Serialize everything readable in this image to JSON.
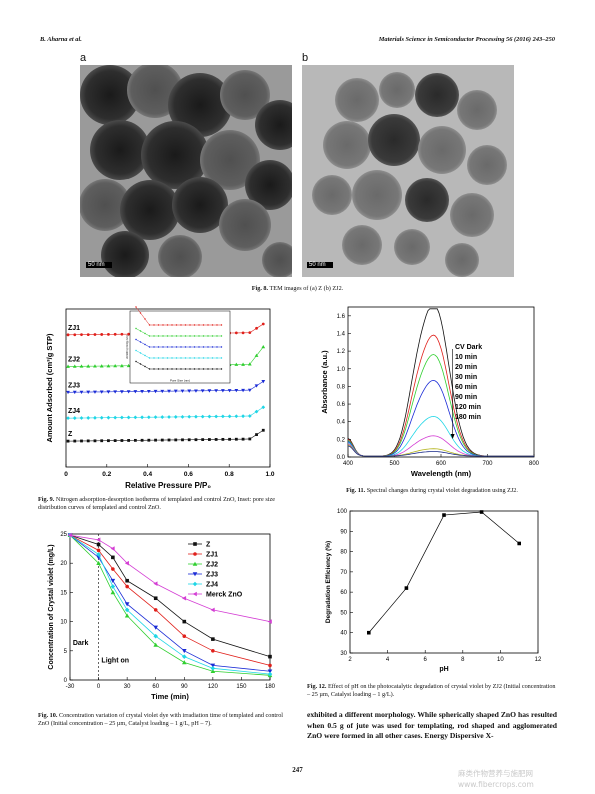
{
  "header": {
    "authors": "B. Aharna et al.",
    "journal": "Materials Science in Semiconductor Processing 56 (2016) 243–250"
  },
  "fig8": {
    "label_a": "a",
    "label_b": "b",
    "scale_a": "50 nm",
    "scale_b": "50 nm",
    "caption_bold": "Fig. 8.",
    "caption": " TEM images of (a) Z (b) ZJ2."
  },
  "fig9": {
    "caption_bold": "Fig. 9.",
    "caption": " Nitrogen adsorption-desorption isotherms of templated and control ZnO, Inset: pore size distribution curves of templated and control ZnO.",
    "inset_xlabel": "Pore Size (nm)",
    "inset_ylabel": "dV/dD (cm³/g nm)"
  },
  "fig10": {
    "caption_bold": "Fig. 10.",
    "caption": " Concentration variation of crystal violet dye with irradiation time of templated and control ZnO (Initial concentration – 25 µm, Catalyst loading – 1 g/L, pH – 7).",
    "dark": "Dark",
    "light": "Light on"
  },
  "fig11": {
    "caption_bold": "Fig. 11.",
    "caption": " Spectral changes during crystal violet degradation using ZJ2."
  },
  "fig12": {
    "caption_bold": "Fig. 12.",
    "caption": " Effect of pH on the photocatalytic degradation of crystal violet by ZJ2 (Initial concentration – 25 µm, Catalyst loading – 1 g/L)."
  },
  "body_text": "exhibited a different morphology. While spherically shaped ZnO has resulted when 0.5 g of jute was used for templating, rod shaped and agglomerated ZnO were formed in all other cases. Energy Dispersive X-",
  "page_number": "247",
  "watermark": "麻类作物营养与施肥网 www.fibercrops.com",
  "chart_data": [
    {
      "id": "fig9",
      "type": "scatter",
      "xlabel": "Relative Pressure P/P₀",
      "ylabel": "Amount Adsorbed (cm³/g STP)",
      "xlim": [
        0,
        1.0
      ],
      "xticks": [
        "0",
        "0.2",
        "0.4",
        "0.6",
        "0.8",
        "1.0"
      ],
      "series": [
        {
          "name": "ZJ1",
          "color": "#e0201b",
          "offset": 4.6
        },
        {
          "name": "ZJ2",
          "color": "#2fcf2f",
          "offset": 3.5
        },
        {
          "name": "ZJ3",
          "color": "#1a2bd6",
          "offset": 2.6
        },
        {
          "name": "ZJ4",
          "color": "#1fd6e6",
          "offset": 1.7
        },
        {
          "name": "Z",
          "color": "#111111",
          "offset": 0.9
        }
      ]
    },
    {
      "id": "fig10",
      "type": "line",
      "xlabel": "Time (min)",
      "ylabel": "Concentration of Crystal violet (mg/L)",
      "xlim": [
        -30,
        180
      ],
      "ylim": [
        0,
        25
      ],
      "xticks": [
        -30,
        0,
        30,
        60,
        90,
        120,
        150,
        180
      ],
      "yticks": [
        0,
        5,
        10,
        15,
        20,
        25
      ],
      "x": [
        -30,
        0,
        15,
        30,
        60,
        90,
        120,
        180
      ],
      "series": [
        {
          "name": "Z",
          "color": "#111111",
          "values": [
            24.8,
            23.2,
            21.0,
            17.0,
            14.0,
            10.0,
            7.0,
            4.0
          ]
        },
        {
          "name": "ZJ1",
          "color": "#e0201b",
          "values": [
            24.8,
            22.2,
            19.0,
            16.0,
            12.0,
            7.5,
            5.0,
            2.5
          ]
        },
        {
          "name": "ZJ2",
          "color": "#2fcf2f",
          "values": [
            24.8,
            20.0,
            15.0,
            11.0,
            6.0,
            3.0,
            1.5,
            0.8
          ]
        },
        {
          "name": "ZJ3",
          "color": "#1a2bd6",
          "values": [
            24.8,
            21.0,
            17.0,
            13.0,
            9.0,
            5.0,
            2.5,
            1.5
          ]
        },
        {
          "name": "ZJ4",
          "color": "#1fd6e6",
          "values": [
            24.8,
            21.5,
            16.0,
            12.0,
            7.5,
            4.0,
            2.0,
            1.0
          ]
        },
        {
          "name": "Merck ZnO",
          "color": "#d43ed4",
          "values": [
            24.8,
            24.0,
            22.5,
            20.0,
            16.5,
            14.0,
            12.0,
            10.0
          ]
        }
      ]
    },
    {
      "id": "fig11",
      "type": "line",
      "xlabel": "Wavelength (nm)",
      "ylabel": "Absorbance (a.u.)",
      "xlim": [
        400,
        800
      ],
      "ylim": [
        0,
        1.7
      ],
      "xticks": [
        400,
        500,
        600,
        700,
        800
      ],
      "yticks": [
        0.0,
        0.2,
        0.4,
        0.6,
        0.8,
        1.0,
        1.2,
        1.4,
        1.6
      ],
      "series": [
        {
          "name": "CV Dark",
          "color": "#111111",
          "peak": 1.65
        },
        {
          "name": "10 min",
          "color": "#e0201b",
          "peak": 1.31
        },
        {
          "name": "20 min",
          "color": "#2fcf2f",
          "peak": 1.1
        },
        {
          "name": "30 min",
          "color": "#1a2bd6",
          "peak": 0.82
        },
        {
          "name": "60 min",
          "color": "#1fd6e6",
          "peak": 0.43
        },
        {
          "name": "90 min",
          "color": "#d43ed4",
          "peak": 0.22
        },
        {
          "name": "120 min",
          "color": "#b5b520",
          "peak": 0.08
        },
        {
          "name": "180 min",
          "color": "#1a2b8a",
          "peak": 0.05
        }
      ]
    },
    {
      "id": "fig12",
      "type": "line",
      "xlabel": "pH",
      "ylabel": "Degradation Efficiency (%)",
      "xlim": [
        2,
        12
      ],
      "ylim": [
        30,
        100
      ],
      "xticks": [
        2,
        4,
        6,
        8,
        10,
        12
      ],
      "yticks": [
        30,
        40,
        50,
        60,
        70,
        80,
        90,
        100
      ],
      "x": [
        3,
        5,
        7,
        9,
        11
      ],
      "values": [
        40,
        62,
        98,
        99.5,
        84
      ]
    }
  ]
}
